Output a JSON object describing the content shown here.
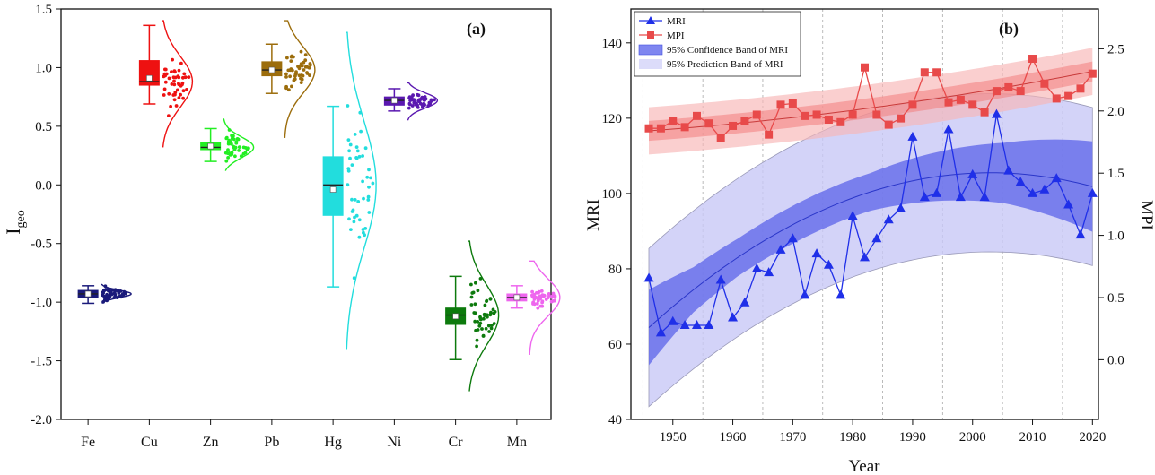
{
  "chart_data": [
    {
      "type": "box",
      "panel_label": "(a)",
      "ylabel": "I",
      "ylabel_sub": "geo",
      "ylim": [
        -2.0,
        1.5
      ],
      "yticks": [
        "-2.0",
        "-1.5",
        "-1.0",
        "-0.5",
        "0.0",
        "0.5",
        "1.0",
        "1.5"
      ],
      "yticks_values": [
        -2.0,
        -1.5,
        -1.0,
        -0.5,
        0.0,
        0.5,
        1.0,
        1.5
      ],
      "categories": [
        "Fe",
        "Cu",
        "Zn",
        "Pb",
        "Hg",
        "Ni",
        "Cr",
        "Mn"
      ],
      "series": [
        {
          "name": "Fe",
          "color": "#1a1a7a",
          "q1": -0.96,
          "median": -0.93,
          "q3": -0.9,
          "whisker_low": -1.01,
          "whisker_high": -0.86,
          "mean": -0.93,
          "violin_min": -1.01,
          "violin_max": -0.85
        },
        {
          "name": "Cu",
          "color": "#ee1111",
          "q1": 0.85,
          "median": 0.88,
          "q3": 1.06,
          "whisker_low": 0.69,
          "whisker_high": 1.36,
          "mean": 0.91,
          "violin_min": 0.32,
          "violin_max": 1.4
        },
        {
          "name": "Zn",
          "color": "#22ee22",
          "q1": 0.3,
          "median": 0.32,
          "q3": 0.36,
          "whisker_low": 0.2,
          "whisker_high": 0.48,
          "mean": 0.33,
          "violin_min": 0.12,
          "violin_max": 0.56
        },
        {
          "name": "Pb",
          "color": "#9c6d0c",
          "q1": 0.93,
          "median": 0.98,
          "q3": 1.05,
          "whisker_low": 0.78,
          "whisker_high": 1.2,
          "mean": 0.98,
          "violin_min": 0.4,
          "violin_max": 1.4
        },
        {
          "name": "Hg",
          "color": "#22dddd",
          "q1": -0.26,
          "median": 0.0,
          "q3": 0.24,
          "whisker_low": -0.87,
          "whisker_high": 0.67,
          "mean": -0.04,
          "violin_min": -1.4,
          "violin_max": 1.3
        },
        {
          "name": "Ni",
          "color": "#5a18b0",
          "q1": 0.68,
          "median": 0.72,
          "q3": 0.75,
          "whisker_low": 0.63,
          "whisker_high": 0.82,
          "mean": 0.72,
          "violin_min": 0.55,
          "violin_max": 0.87
        },
        {
          "name": "Cr",
          "color": "#0d7a0d",
          "q1": -1.19,
          "median": -1.11,
          "q3": -1.05,
          "whisker_low": -1.49,
          "whisker_high": -0.78,
          "mean": -1.12,
          "violin_min": -1.76,
          "violin_max": -0.48
        },
        {
          "name": "Mn",
          "color": "#ee66ee",
          "q1": -0.99,
          "median": -0.96,
          "q3": -0.93,
          "whisker_low": -1.05,
          "whisker_high": -0.86,
          "mean": -0.96,
          "violin_min": -1.45,
          "violin_max": -0.65
        }
      ]
    },
    {
      "type": "line",
      "panel_label": "(b)",
      "xlabel": "Year",
      "ylabel": "MRI",
      "y2label": "MPI",
      "xlim": [
        1943,
        2021
      ],
      "ylim": [
        40,
        149
      ],
      "y2lim": [
        -0.48,
        2.82
      ],
      "xticks": [
        "1950",
        "1960",
        "1970",
        "1980",
        "1990",
        "2000",
        "2010",
        "2020"
      ],
      "xticks_values": [
        1950,
        1960,
        1970,
        1980,
        1990,
        2000,
        2010,
        2020
      ],
      "yticks": [
        "40",
        "60",
        "80",
        "100",
        "120",
        "140"
      ],
      "yticks_values": [
        40,
        60,
        80,
        100,
        120,
        140
      ],
      "y2ticks": [
        "0.0",
        "0.5",
        "1.0",
        "1.5",
        "2.0",
        "2.5"
      ],
      "y2ticks_values": [
        0.0,
        0.5,
        1.0,
        1.5,
        2.0,
        2.5
      ],
      "vgrid_x": [
        1945,
        1955,
        1965,
        1975,
        1985,
        1995,
        2005,
        2015
      ],
      "legend": {
        "position": "top-left",
        "entries": [
          "MRI",
          "MPI",
          "95% Confidence Band of MRI",
          "95% Prediction Band of MRI"
        ]
      },
      "x": [
        1946,
        1948,
        1950,
        1952,
        1954,
        1956,
        1958,
        1960,
        1962,
        1964,
        1966,
        1968,
        1970,
        1972,
        1974,
        1976,
        1978,
        1980,
        1982,
        1984,
        1986,
        1988,
        1990,
        1992,
        1994,
        1996,
        1998,
        2000,
        2002,
        2004,
        2006,
        2008,
        2010,
        2012,
        2014,
        2016,
        2018,
        2020
      ],
      "series": [
        {
          "name": "MRI",
          "axis": "left",
          "color": "#1f2fe8",
          "marker": "triangle",
          "values": [
            77.5,
            63,
            66,
            65,
            65,
            65,
            77,
            67,
            71,
            80,
            79,
            85,
            88,
            73,
            84,
            81,
            73,
            94,
            83,
            88,
            93,
            96,
            115,
            99,
            100,
            117,
            99,
            105,
            99,
            121,
            106,
            103,
            100,
            101,
            104,
            97,
            89,
            100
          ]
        },
        {
          "name": "MPI",
          "axis": "right",
          "color": "#e84a4a",
          "marker": "square",
          "values": [
            1.86,
            1.86,
            1.92,
            1.87,
            1.96,
            1.9,
            1.78,
            1.88,
            1.92,
            1.97,
            1.81,
            2.05,
            2.06,
            1.96,
            1.97,
            1.93,
            1.91,
            1.97,
            2.35,
            1.97,
            1.89,
            1.94,
            2.05,
            2.31,
            2.31,
            2.07,
            2.09,
            2.05,
            1.99,
            2.16,
            2.19,
            2.16,
            2.42,
            2.22,
            2.1,
            2.12,
            2.18,
            2.3
          ]
        }
      ],
      "mri_fit": {
        "a": 64.4,
        "b": 0.037,
        "year0": 1946,
        "peak_year": 2003,
        "peak_value": 105.5
      },
      "confidence_band_halfwidth_mri": [
        10,
        6,
        5,
        5,
        5,
        5,
        6,
        7,
        8,
        10,
        12
      ],
      "prediction_band_halfwidth_mri": 21,
      "mpi_fit": {
        "c0": 1.84,
        "c1": 0.0035,
        "c2": 8e-05
      }
    }
  ]
}
